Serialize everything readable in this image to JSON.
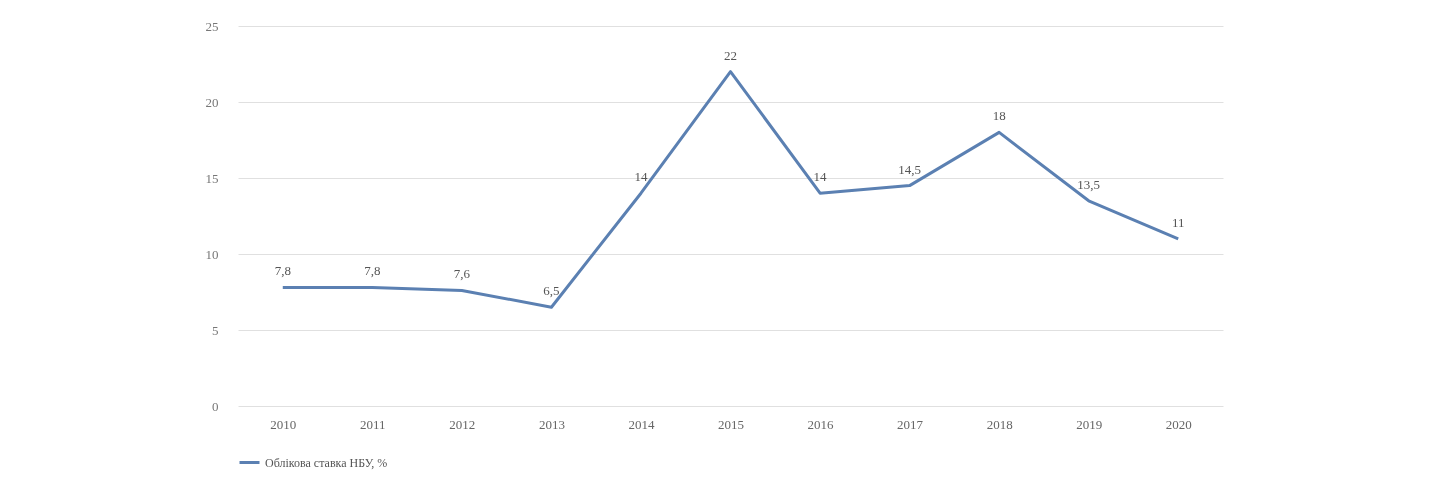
{
  "chart_data": {
    "type": "line",
    "categories": [
      "2010",
      "2011",
      "2012",
      "2013",
      "2014",
      "2015",
      "2016",
      "2017",
      "2018",
      "2019",
      "2020"
    ],
    "series": [
      {
        "name": "Облікова ставка НБУ, %",
        "color": "#5b80b2",
        "values": [
          7.8,
          7.8,
          7.6,
          6.5,
          14,
          22,
          14,
          14.5,
          18,
          13.5,
          11
        ],
        "value_labels": [
          "7,8",
          "7,8",
          "7,6",
          "6,5",
          "14",
          "22",
          "14",
          "14,5",
          "18",
          "13,5",
          "11"
        ]
      }
    ],
    "ylim": [
      0,
      25
    ],
    "yticks": [
      0,
      5,
      10,
      15,
      20,
      25
    ],
    "grid": "y",
    "legend": "bottom",
    "marker": "none",
    "line_style": "solid"
  }
}
